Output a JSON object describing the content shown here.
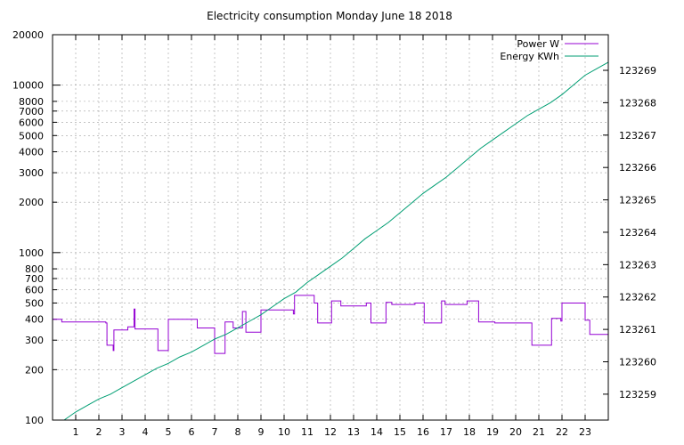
{
  "chart_data": {
    "type": "line",
    "title": "Electricity consumption Monday June 18 2018",
    "xlim": [
      0,
      24
    ],
    "x_ticks": [
      "1",
      "2",
      "3",
      "4",
      "5",
      "6",
      "7",
      "8",
      "9",
      "10",
      "11",
      "12",
      "13",
      "14",
      "15",
      "16",
      "17",
      "18",
      "19",
      "20",
      "21",
      "22",
      "23"
    ],
    "y1_scale": "log",
    "y1_lim": [
      100,
      20000
    ],
    "y1_ticks": [
      "100",
      "200",
      "300",
      "400",
      "500",
      "600",
      "700",
      "800",
      "1000",
      "2000",
      "3000",
      "4000",
      "5000",
      "6000",
      "7000",
      "8000",
      "10000",
      "20000"
    ],
    "y2_lim": [
      123258.2,
      123270.1
    ],
    "y2_ticks": [
      "123259",
      "123260",
      "123261",
      "123262",
      "123263",
      "123264",
      "123265",
      "123266",
      "123267",
      "123268",
      "123269"
    ],
    "grid": true,
    "legend_position": "top-right",
    "series": [
      {
        "name": "Power W",
        "axis": "y1",
        "style": "step",
        "color": "#9400d3",
        "points": [
          [
            0,
            400
          ],
          [
            0.4,
            385
          ],
          [
            1.3,
            385
          ],
          [
            2.3,
            380
          ],
          [
            2.35,
            280
          ],
          [
            2.6,
            280
          ],
          [
            2.62,
            260
          ],
          [
            2.65,
            345
          ],
          [
            3.2,
            345
          ],
          [
            3.25,
            360
          ],
          [
            3.5,
            360
          ],
          [
            3.52,
            460
          ],
          [
            3.56,
            350
          ],
          [
            4.0,
            350
          ],
          [
            4.5,
            350
          ],
          [
            4.55,
            260
          ],
          [
            4.95,
            260
          ],
          [
            5.0,
            400
          ],
          [
            6.2,
            400
          ],
          [
            6.25,
            355
          ],
          [
            6.95,
            355
          ],
          [
            7.0,
            250
          ],
          [
            7.4,
            250
          ],
          [
            7.45,
            385
          ],
          [
            7.75,
            385
          ],
          [
            7.8,
            355
          ],
          [
            8.15,
            355
          ],
          [
            8.2,
            445
          ],
          [
            8.3,
            445
          ],
          [
            8.35,
            335
          ],
          [
            8.95,
            335
          ],
          [
            9.0,
            455
          ],
          [
            10.35,
            455
          ],
          [
            10.4,
            430
          ],
          [
            10.45,
            555
          ],
          [
            11.25,
            555
          ],
          [
            11.3,
            500
          ],
          [
            11.4,
            500
          ],
          [
            11.45,
            380
          ],
          [
            12.0,
            380
          ],
          [
            12.05,
            515
          ],
          [
            12.4,
            515
          ],
          [
            12.45,
            480
          ],
          [
            13.5,
            480
          ],
          [
            13.55,
            500
          ],
          [
            13.7,
            500
          ],
          [
            13.75,
            380
          ],
          [
            14.35,
            380
          ],
          [
            14.4,
            505
          ],
          [
            14.6,
            505
          ],
          [
            14.65,
            490
          ],
          [
            15.6,
            490
          ],
          [
            15.65,
            500
          ],
          [
            16.0,
            500
          ],
          [
            16.05,
            380
          ],
          [
            16.75,
            380
          ],
          [
            16.8,
            515
          ],
          [
            16.9,
            515
          ],
          [
            16.95,
            490
          ],
          [
            17.85,
            490
          ],
          [
            17.9,
            515
          ],
          [
            18.35,
            515
          ],
          [
            18.4,
            385
          ],
          [
            19.05,
            385
          ],
          [
            19.1,
            380
          ],
          [
            20.65,
            380
          ],
          [
            20.7,
            280
          ],
          [
            21.5,
            280
          ],
          [
            21.55,
            405
          ],
          [
            21.9,
            405
          ],
          [
            21.95,
            390
          ],
          [
            22.0,
            500
          ],
          [
            22.95,
            500
          ],
          [
            23.0,
            395
          ],
          [
            23.15,
            395
          ],
          [
            23.2,
            325
          ],
          [
            23.95,
            325
          ],
          [
            24.0,
            460
          ]
        ]
      },
      {
        "name": "Energy KWh",
        "axis": "y2",
        "style": "line",
        "color": "#009e73",
        "points": [
          [
            0.5,
            123258.2
          ],
          [
            1.0,
            123258.45
          ],
          [
            1.5,
            123258.65
          ],
          [
            2.0,
            123258.85
          ],
          [
            2.5,
            123259.0
          ],
          [
            3.0,
            123259.2
          ],
          [
            3.5,
            123259.4
          ],
          [
            4.0,
            123259.6
          ],
          [
            4.5,
            123259.8
          ],
          [
            5.0,
            123259.95
          ],
          [
            5.5,
            123260.15
          ],
          [
            6.0,
            123260.3
          ],
          [
            6.5,
            123260.5
          ],
          [
            7.0,
            123260.7
          ],
          [
            7.5,
            123260.85
          ],
          [
            8.0,
            123261.05
          ],
          [
            8.5,
            123261.25
          ],
          [
            9.0,
            123261.45
          ],
          [
            9.5,
            123261.7
          ],
          [
            10.0,
            123261.95
          ],
          [
            10.5,
            123262.15
          ],
          [
            11.0,
            123262.45
          ],
          [
            11.5,
            123262.7
          ],
          [
            12.0,
            123262.95
          ],
          [
            12.5,
            123263.2
          ],
          [
            13.0,
            123263.5
          ],
          [
            13.5,
            123263.8
          ],
          [
            14.0,
            123264.05
          ],
          [
            14.5,
            123264.3
          ],
          [
            15.0,
            123264.6
          ],
          [
            15.5,
            123264.9
          ],
          [
            16.0,
            123265.2
          ],
          [
            16.5,
            123265.45
          ],
          [
            17.0,
            123265.7
          ],
          [
            17.5,
            123266.0
          ],
          [
            18.0,
            123266.3
          ],
          [
            18.5,
            123266.6
          ],
          [
            19.0,
            123266.85
          ],
          [
            19.5,
            123267.1
          ],
          [
            20.0,
            123267.35
          ],
          [
            20.5,
            123267.6
          ],
          [
            21.0,
            123267.8
          ],
          [
            21.5,
            123268.0
          ],
          [
            22.0,
            123268.25
          ],
          [
            22.5,
            123268.55
          ],
          [
            23.0,
            123268.85
          ],
          [
            23.5,
            123269.05
          ],
          [
            24.0,
            123269.25
          ]
        ]
      }
    ]
  }
}
